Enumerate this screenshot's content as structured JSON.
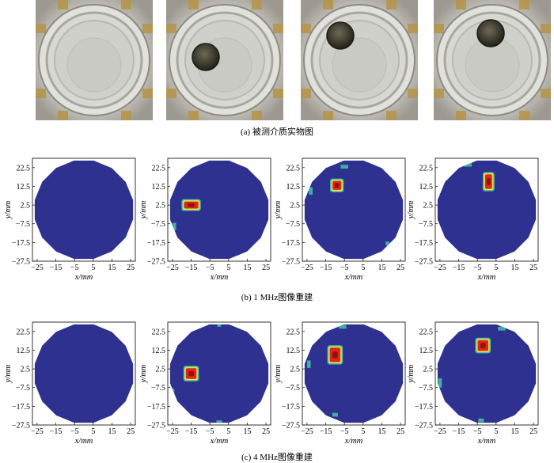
{
  "captions": {
    "a": "(a) 被测介质实物图",
    "b": "(b) 1 MHz图像重建",
    "c": "(c) 4 MHz图像重建"
  },
  "photos": [
    {
      "coin": false
    },
    {
      "coin": true,
      "coin_position": "left-lower"
    },
    {
      "coin": true,
      "coin_position": "upper-left"
    },
    {
      "coin": true,
      "coin_position": "upper-center"
    }
  ],
  "axis": {
    "xlabel": "x/mm",
    "ylabel": "y/mm",
    "xticks": [
      "−25",
      "−15",
      "−5",
      "5",
      "15",
      "25"
    ],
    "yticks": [
      "22.5",
      "12.5",
      "2.5",
      "−7.5",
      "−17.5",
      "−27.5"
    ],
    "xlim": [
      -27.5,
      27.5
    ],
    "ylim": [
      -27.5,
      27.5
    ]
  },
  "colors": {
    "background": "#2e3190",
    "low": "#42c6a5",
    "mid": "#f2e33b",
    "high": "#e02521",
    "peak": "#8a1410"
  },
  "chart_data": [
    {
      "type": "heatmap",
      "row": "1 MHz",
      "col": 1,
      "anomalies": []
    },
    {
      "type": "heatmap",
      "row": "1 MHz",
      "col": 2,
      "anomalies": [
        {
          "x": -15,
          "y": 2.5,
          "w": 9,
          "h": 5,
          "level": "high"
        },
        {
          "x": -25,
          "y": 12,
          "w": 2,
          "h": 4,
          "level": "low"
        },
        {
          "x": -24,
          "y": -9,
          "w": 2,
          "h": 4,
          "level": "low"
        }
      ]
    },
    {
      "type": "heatmap",
      "row": "1 MHz",
      "col": 3,
      "anomalies": [
        {
          "x": -9,
          "y": 13,
          "w": 6,
          "h": 6,
          "level": "high"
        },
        {
          "x": -5,
          "y": 23,
          "w": 4,
          "h": 2,
          "level": "low"
        },
        {
          "x": -23,
          "y": 10,
          "w": 2,
          "h": 4,
          "level": "low"
        },
        {
          "x": 18,
          "y": -18,
          "w": 2,
          "h": 2,
          "level": "low"
        }
      ]
    },
    {
      "type": "heatmap",
      "row": "1 MHz",
      "col": 4,
      "anomalies": [
        {
          "x": 1,
          "y": 15,
          "w": 5,
          "h": 9,
          "level": "high"
        },
        {
          "x": -10,
          "y": 24,
          "w": 4,
          "h": 2,
          "level": "low"
        }
      ]
    },
    {
      "type": "heatmap",
      "row": "4 MHz",
      "col": 1,
      "anomalies": []
    },
    {
      "type": "heatmap",
      "row": "4 MHz",
      "col": 2,
      "anomalies": [
        {
          "x": -15,
          "y": 0,
          "w": 7,
          "h": 7,
          "level": "high"
        },
        {
          "x": 0,
          "y": 26,
          "w": 2,
          "h": 2,
          "level": "low"
        },
        {
          "x": 0,
          "y": -26,
          "w": 3,
          "h": 2,
          "level": "low"
        },
        {
          "x": -25,
          "y": -10,
          "w": 2,
          "h": 4,
          "level": "low"
        }
      ]
    },
    {
      "type": "heatmap",
      "row": "4 MHz",
      "col": 3,
      "anomalies": [
        {
          "x": -10,
          "y": 10,
          "w": 7,
          "h": 9,
          "level": "high"
        },
        {
          "x": -6,
          "y": 25,
          "w": 4,
          "h": 2,
          "level": "low"
        },
        {
          "x": -24,
          "y": 5,
          "w": 2,
          "h": 4,
          "level": "low"
        },
        {
          "x": -10,
          "y": -22,
          "w": 3,
          "h": 2,
          "level": "low"
        }
      ]
    },
    {
      "type": "heatmap",
      "row": "4 MHz",
      "col": 4,
      "anomalies": [
        {
          "x": -2,
          "y": 15,
          "w": 7,
          "h": 7,
          "level": "high"
        },
        {
          "x": 8,
          "y": 24,
          "w": 4,
          "h": 2,
          "level": "low"
        },
        {
          "x": -25,
          "y": -5,
          "w": 2,
          "h": 5,
          "level": "low"
        },
        {
          "x": -3,
          "y": -25,
          "w": 3,
          "h": 2,
          "level": "low"
        }
      ]
    }
  ]
}
